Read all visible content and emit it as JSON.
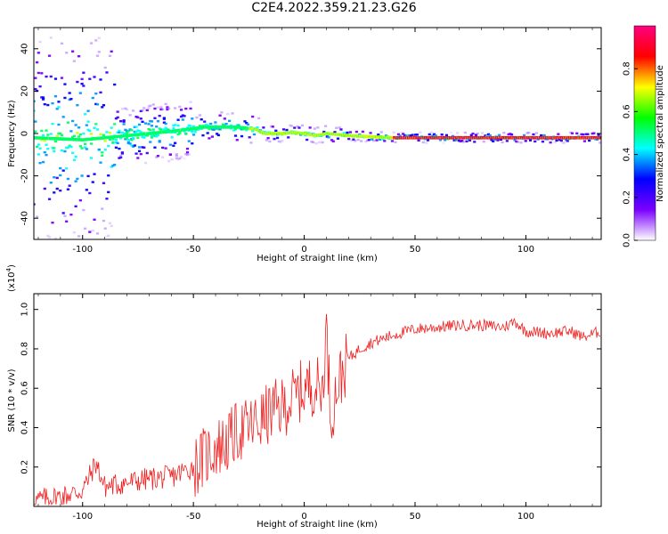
{
  "title": "C2E4.2022.359.21.23.G26",
  "chart_data": [
    {
      "type": "heatmap",
      "xlabel": "Height of straight line (km)",
      "ylabel": "Frequency (Hz)",
      "xlim": [
        -122,
        134
      ],
      "ylim": [
        -50,
        50
      ],
      "xticks": [
        -100,
        -50,
        0,
        50,
        100
      ],
      "xtick_labels": [
        "-100",
        "-50",
        "0",
        "50",
        "100"
      ],
      "yticks": [
        -40,
        -20,
        0,
        20,
        40
      ],
      "ytick_labels": [
        "-40",
        "-20",
        "0",
        "20",
        "40"
      ],
      "colorbar": {
        "label": "Normalized spectral amplitude",
        "range": [
          0,
          1
        ],
        "ticks": [
          0.0,
          0.2,
          0.4,
          0.6,
          0.8
        ],
        "tick_labels": [
          "0.0",
          "0.2",
          "0.4",
          "0.6",
          "0.8"
        ],
        "colors": [
          "#ffffff",
          "#7a00ff",
          "#0000ff",
          "#00ffff",
          "#00ff00",
          "#ffff00",
          "#ff0000",
          "#ff0080"
        ]
      },
      "ridge": {
        "x": [
          -122,
          -100,
          -80,
          -60,
          -45,
          -30,
          -22,
          -18,
          -10,
          -5,
          0,
          5,
          10,
          20,
          40,
          60,
          80,
          100,
          134
        ],
        "frequency": [
          -2,
          -3,
          -1,
          1,
          3,
          3,
          2,
          0,
          0,
          0.5,
          0,
          -1,
          0,
          -1,
          -2,
          -2,
          -2,
          -2,
          -2
        ]
      }
    },
    {
      "type": "line",
      "xlabel": "Height of straight line (km)",
      "ylabel": "SNR (10 * v/v)",
      "y_multiplier_label": "(x10",
      "y_multiplier_exp": "4",
      "y_multiplier_close": ")",
      "xlim": [
        -122,
        134
      ],
      "ylim": [
        0,
        1.08
      ],
      "xticks": [
        -100,
        -50,
        0,
        50,
        100
      ],
      "xtick_labels": [
        "-100",
        "-50",
        "0",
        "50",
        "100"
      ],
      "yticks": [
        0.2,
        0.4,
        0.6,
        0.8,
        1.0
      ],
      "ytick_labels": [
        "0.2",
        "0.4",
        "0.6",
        "0.8",
        "1.0"
      ],
      "color": "#ee2222",
      "series": [
        {
          "x": [
            -122,
            -110,
            -100,
            -94,
            -90,
            -80,
            -70,
            -60,
            -50,
            -45,
            -40,
            -35,
            -30,
            -25,
            -20,
            -15,
            -10,
            -5,
            0,
            5,
            8,
            10,
            12,
            15,
            20,
            25,
            30,
            40,
            50,
            60,
            70,
            80,
            90,
            95,
            100,
            110,
            120,
            126,
            134
          ],
          "y": [
            0.03,
            0.05,
            0.08,
            0.22,
            0.1,
            0.12,
            0.14,
            0.15,
            0.2,
            0.25,
            0.3,
            0.32,
            0.38,
            0.4,
            0.43,
            0.48,
            0.5,
            0.55,
            0.6,
            0.62,
            0.58,
            0.9,
            0.45,
            0.62,
            0.75,
            0.8,
            0.83,
            0.87,
            0.9,
            0.91,
            0.92,
            0.92,
            0.91,
            0.94,
            0.89,
            0.88,
            0.89,
            0.86,
            0.89
          ]
        }
      ]
    }
  ]
}
